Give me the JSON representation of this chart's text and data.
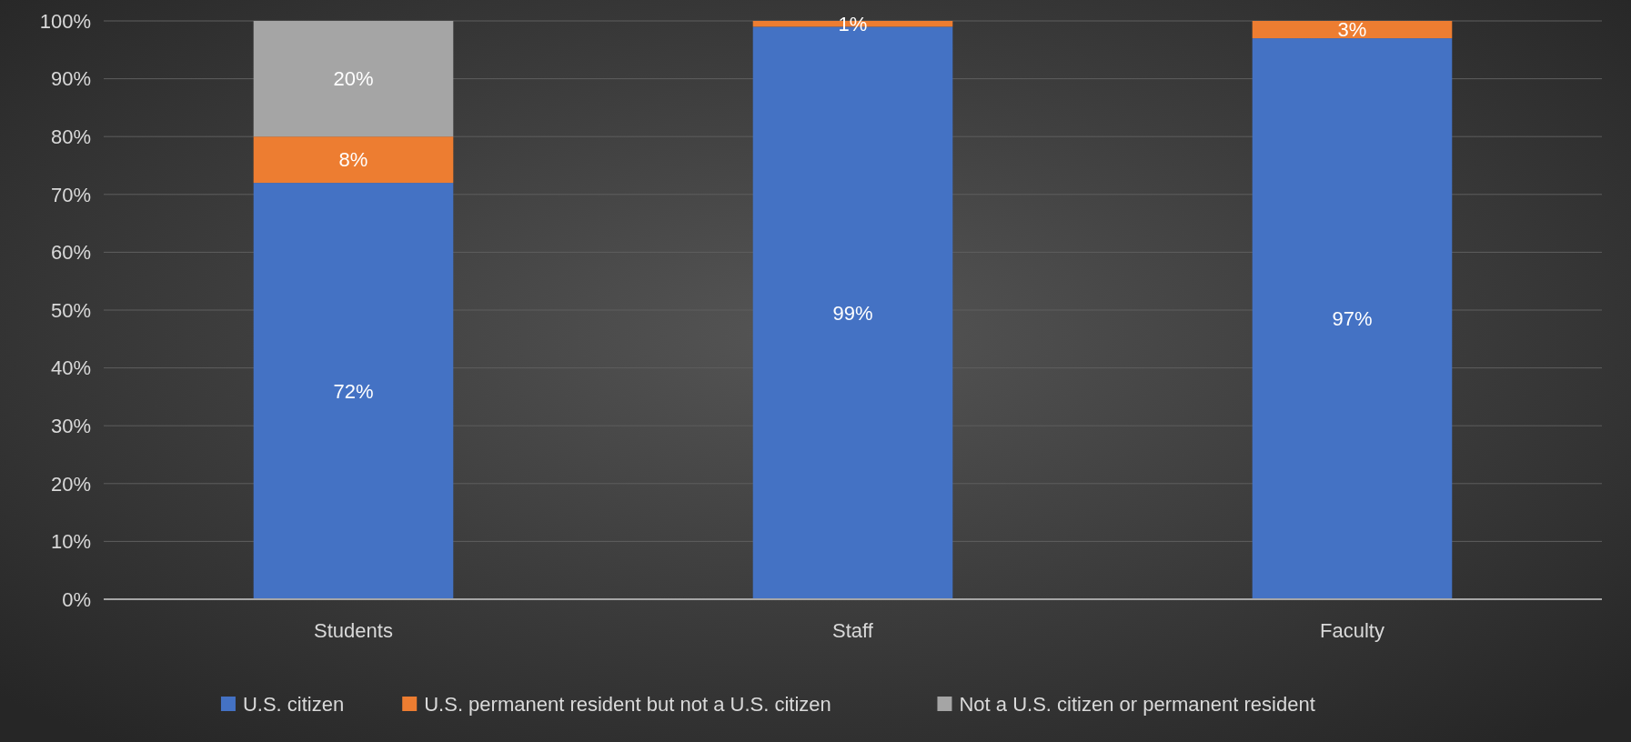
{
  "chart_data": {
    "type": "bar",
    "stacked": true,
    "categories": [
      "Students",
      "Staff",
      "Faculty"
    ],
    "series": [
      {
        "name": "U.S. citizen",
        "color": "#4472c4",
        "values": [
          72,
          99,
          97
        ],
        "value_labels": [
          "72%",
          "99%",
          "97%"
        ]
      },
      {
        "name": "U.S. permanent resident but not a U.S. citizen",
        "color": "#ed7d31",
        "values": [
          8,
          1,
          3
        ],
        "value_labels": [
          "8%",
          "1%",
          "3%"
        ]
      },
      {
        "name": "Not a U.S. citizen or permanent resident",
        "color": "#a5a5a5",
        "values": [
          20,
          0,
          0
        ],
        "value_labels": [
          "20%",
          null,
          null
        ]
      }
    ],
    "ylim": [
      0,
      100
    ],
    "yticks": [
      {
        "value": 0,
        "label": "0%"
      },
      {
        "value": 10,
        "label": "10%"
      },
      {
        "value": 20,
        "label": "20%"
      },
      {
        "value": 30,
        "label": "30%"
      },
      {
        "value": 40,
        "label": "40%"
      },
      {
        "value": 50,
        "label": "50%"
      },
      {
        "value": 60,
        "label": "60%"
      },
      {
        "value": 70,
        "label": "70%"
      },
      {
        "value": 80,
        "label": "80%"
      },
      {
        "value": 90,
        "label": "90%"
      },
      {
        "value": 100,
        "label": "100%"
      }
    ],
    "grid": "y",
    "legend": "bottom"
  }
}
